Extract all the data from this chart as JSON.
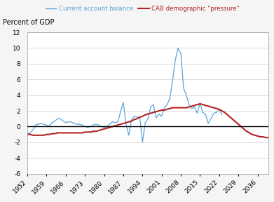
{
  "title_ylabel": "Percent of GDP",
  "legend_line1": "Current account balance",
  "legend_line2": "CAB demographic \"pressure\"",
  "color_cab": "#5ba3d9",
  "color_dem": "#b22222",
  "color_zeroline": "#000000",
  "xlim_start": 1952,
  "xlim_end": 2040,
  "ylim": [
    -6,
    12
  ],
  "yticks": [
    -6,
    -4,
    -2,
    0,
    2,
    4,
    6,
    8,
    10,
    12
  ],
  "xticks": [
    1952,
    1959,
    1966,
    1973,
    1980,
    1987,
    1994,
    2001,
    2008,
    2015,
    2022,
    2029,
    2036
  ],
  "cab_years": [
    1952,
    1953,
    1954,
    1955,
    1956,
    1957,
    1958,
    1959,
    1960,
    1961,
    1962,
    1963,
    1964,
    1965,
    1966,
    1967,
    1968,
    1969,
    1970,
    1971,
    1972,
    1973,
    1974,
    1975,
    1976,
    1977,
    1978,
    1979,
    1980,
    1981,
    1982,
    1983,
    1984,
    1985,
    1986,
    1987,
    1988,
    1989,
    1990,
    1991,
    1992,
    1993,
    1994,
    1995,
    1996,
    1997,
    1998,
    1999,
    2000,
    2001,
    2002,
    2003,
    2004,
    2005,
    2006,
    2007,
    2008,
    2009,
    2010,
    2011,
    2012,
    2013,
    2014,
    2015,
    2016,
    2017,
    2018,
    2019,
    2020,
    2021,
    2022,
    2023
  ],
  "cab_values": [
    -1.2,
    -0.8,
    -0.4,
    0.2,
    0.3,
    0.4,
    0.3,
    0.2,
    0.1,
    0.5,
    0.7,
    1.0,
    1.0,
    0.7,
    0.5,
    0.6,
    0.6,
    0.4,
    0.3,
    0.3,
    0.2,
    0.0,
    -0.1,
    0.0,
    0.2,
    0.3,
    0.2,
    0.0,
    -0.1,
    0.0,
    0.3,
    0.6,
    0.5,
    0.6,
    1.9,
    3.1,
    0.3,
    -1.1,
    0.9,
    1.3,
    1.2,
    1.2,
    -2.0,
    0.5,
    1.0,
    2.5,
    2.8,
    1.1,
    1.6,
    1.3,
    2.4,
    2.8,
    3.6,
    5.9,
    8.5,
    10.0,
    9.3,
    4.9,
    4.0,
    2.8,
    2.3,
    2.5,
    1.7,
    3.0,
    1.8,
    1.6,
    0.4,
    1.0,
    1.7,
    1.8,
    2.2,
    1.5
  ],
  "dem_years": [
    1952,
    1953,
    1954,
    1955,
    1956,
    1957,
    1958,
    1959,
    1960,
    1961,
    1962,
    1963,
    1964,
    1965,
    1966,
    1967,
    1968,
    1969,
    1970,
    1971,
    1972,
    1973,
    1974,
    1975,
    1976,
    1977,
    1978,
    1979,
    1980,
    1981,
    1982,
    1983,
    1984,
    1985,
    1986,
    1987,
    1988,
    1989,
    1990,
    1991,
    1992,
    1993,
    1994,
    1995,
    1996,
    1997,
    1998,
    1999,
    2000,
    2001,
    2002,
    2003,
    2004,
    2005,
    2006,
    2007,
    2008,
    2009,
    2010,
    2011,
    2012,
    2013,
    2014,
    2015,
    2016,
    2017,
    2018,
    2019,
    2020,
    2021,
    2022,
    2023,
    2024,
    2025,
    2026,
    2027,
    2028,
    2029,
    2030,
    2031,
    2032,
    2033,
    2034,
    2035,
    2036,
    2037,
    2038,
    2039,
    2040
  ],
  "dem_values": [
    -0.9,
    -1.0,
    -1.1,
    -1.1,
    -1.1,
    -1.1,
    -1.1,
    -1.0,
    -1.0,
    -0.9,
    -0.9,
    -0.8,
    -0.8,
    -0.8,
    -0.8,
    -0.8,
    -0.8,
    -0.8,
    -0.8,
    -0.8,
    -0.8,
    -0.7,
    -0.7,
    -0.7,
    -0.6,
    -0.6,
    -0.5,
    -0.4,
    -0.3,
    -0.2,
    -0.1,
    0.0,
    0.1,
    0.2,
    0.3,
    0.4,
    0.5,
    0.6,
    0.7,
    0.9,
    1.0,
    1.2,
    1.3,
    1.5,
    1.6,
    1.7,
    1.8,
    1.9,
    2.0,
    2.1,
    2.1,
    2.2,
    2.3,
    2.4,
    2.4,
    2.4,
    2.4,
    2.4,
    2.4,
    2.5,
    2.6,
    2.7,
    2.8,
    2.9,
    2.8,
    2.7,
    2.6,
    2.5,
    2.4,
    2.3,
    2.2,
    2.0,
    1.8,
    1.5,
    1.2,
    0.9,
    0.6,
    0.3,
    0.0,
    -0.3,
    -0.6,
    -0.8,
    -1.0,
    -1.1,
    -1.2,
    -1.3,
    -1.3,
    -1.4,
    -1.4
  ],
  "bg_color": "#f5f5f5",
  "plot_bg_color": "#ffffff",
  "grid_color": "#cccccc",
  "spine_color": "#999999"
}
